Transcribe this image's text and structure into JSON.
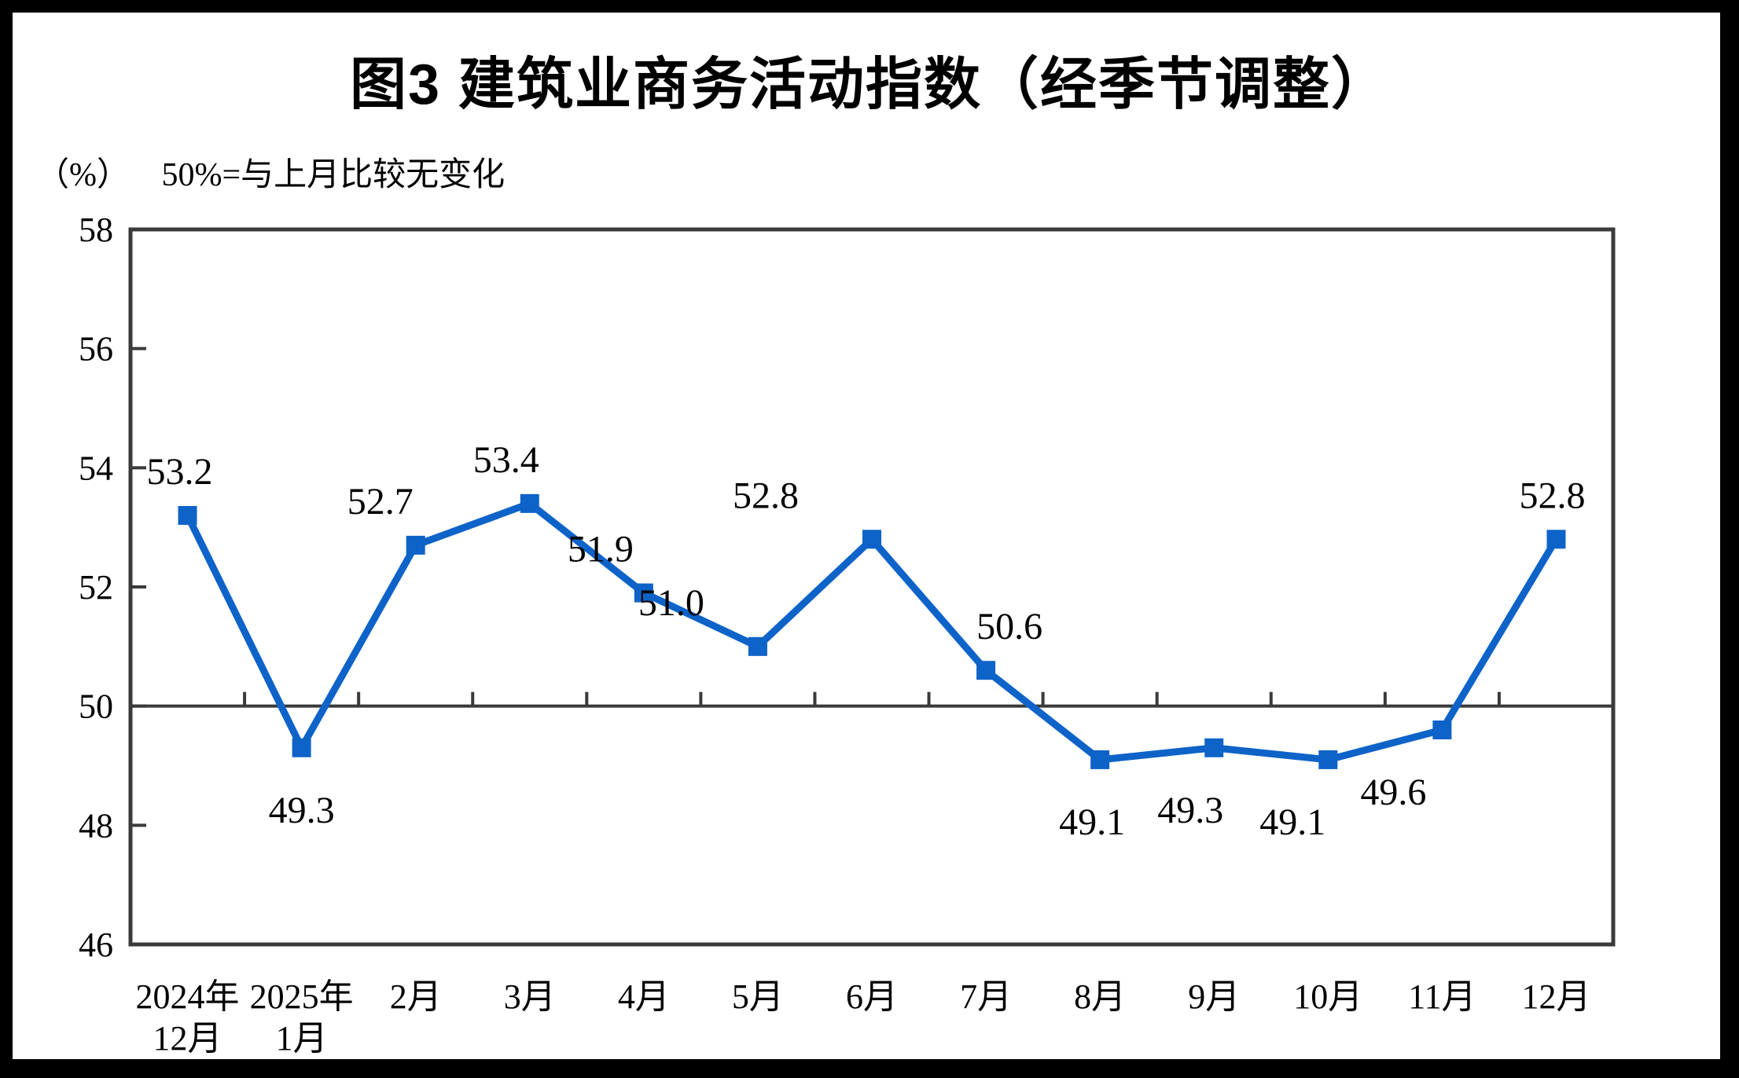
{
  "frame": {
    "outer_background": "#000000",
    "canvas_background": "#ffffff"
  },
  "title": "图3 建筑业商务活动指数（经季节调整）",
  "y_axis_unit_label": "（%）",
  "reference_note": "50%=与上月比较无变化",
  "chart_data": {
    "type": "line",
    "title": "图3 建筑业商务活动指数（经季节调整）",
    "categories": [
      "2024年\n12月",
      "2025年\n1月",
      "2月",
      "3月",
      "4月",
      "5月",
      "6月",
      "7月",
      "8月",
      "9月",
      "10月",
      "11月",
      "12月"
    ],
    "values": [
      53.2,
      49.3,
      52.7,
      53.4,
      51.9,
      51.0,
      52.8,
      50.6,
      49.1,
      49.3,
      49.1,
      49.6,
      52.8
    ],
    "xlabel": "",
    "ylabel": "（%）",
    "ylim": [
      46,
      58
    ],
    "yticks": [
      46,
      48,
      50,
      52,
      54,
      56,
      58
    ],
    "reference_line": 50,
    "grid": false,
    "legend": "none",
    "marker": "square",
    "series_color": "#0E63C8",
    "axis_color": "#3A3A3A",
    "label_color": "#000000",
    "data_label_side": [
      "above",
      "below",
      "above",
      "above",
      "above",
      "above",
      "above",
      "above",
      "below",
      "below",
      "below",
      "below",
      "above"
    ],
    "data_label_dx": [
      -10,
      0,
      -45,
      -30,
      -55,
      -110,
      -135,
      30,
      -10,
      -30,
      -45,
      -62,
      -5
    ]
  }
}
